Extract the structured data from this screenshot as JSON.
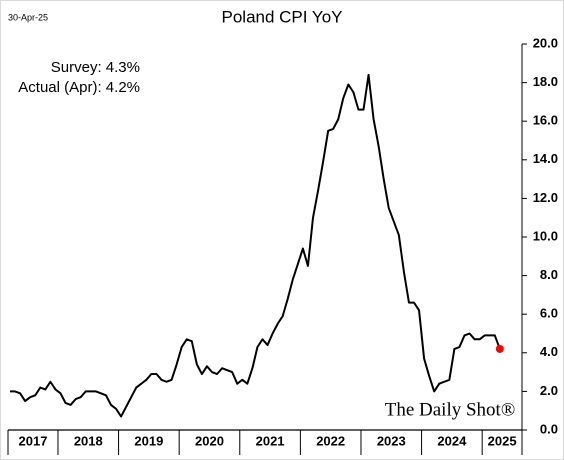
{
  "date": "30-Apr-25",
  "brand": "The Daily Shot®",
  "chart_data": {
    "type": "line",
    "title": "Poland CPI YoY",
    "annotations": [
      "Survey:  4.3%",
      "Actual (Apr):  4.2%"
    ],
    "categories": [
      "2017",
      null,
      null,
      null,
      null,
      null,
      null,
      null,
      null,
      null,
      "2018",
      null,
      null,
      null,
      null,
      null,
      null,
      null,
      null,
      null,
      null,
      null,
      "2019",
      null,
      null,
      null,
      null,
      null,
      null,
      null,
      null,
      null,
      null,
      null,
      "2020",
      null,
      null,
      null,
      null,
      null,
      null,
      null,
      null,
      null,
      null,
      null,
      "2021",
      null,
      null,
      null,
      null,
      null,
      null,
      null,
      null,
      null,
      null,
      null,
      "2022",
      null,
      null,
      null,
      null,
      null,
      null,
      null,
      null,
      null,
      null,
      null,
      "2023",
      null,
      null,
      null,
      null,
      null,
      null,
      null,
      null,
      null,
      null,
      null,
      "2024",
      null,
      null,
      null,
      null,
      null,
      null,
      null,
      null,
      null,
      null,
      null,
      "2025",
      null,
      null,
      null
    ],
    "series": [
      {
        "color": "#000000",
        "last_point_color": "#ff0000",
        "values": [
          2.0,
          2.0,
          1.9,
          1.5,
          1.7,
          1.8,
          2.2,
          2.1,
          2.5,
          2.1,
          1.9,
          1.4,
          1.3,
          1.6,
          1.7,
          2.0,
          2.0,
          2.0,
          1.9,
          1.8,
          1.3,
          1.1,
          0.7,
          1.2,
          1.7,
          2.2,
          2.4,
          2.6,
          2.9,
          2.9,
          2.6,
          2.5,
          2.6,
          3.4,
          4.3,
          4.7,
          4.6,
          3.4,
          2.9,
          3.3,
          3.0,
          2.9,
          3.2,
          3.1,
          3.0,
          2.4,
          2.6,
          2.4,
          3.2,
          4.3,
          4.7,
          4.4,
          5.0,
          5.5,
          5.9,
          6.8,
          7.8,
          8.6,
          9.4,
          8.5,
          11.0,
          12.4,
          13.9,
          15.5,
          15.6,
          16.1,
          17.2,
          17.9,
          17.5,
          16.6,
          16.6,
          18.4,
          16.1,
          14.7,
          13.0,
          11.5,
          10.8,
          10.1,
          8.2,
          6.6,
          6.6,
          6.2,
          3.7,
          2.8,
          2.0,
          2.4,
          2.5,
          2.6,
          4.2,
          4.3,
          4.9,
          5.0,
          4.7,
          4.7,
          4.9,
          4.9,
          4.9,
          4.2
        ]
      }
    ],
    "ylim": [
      0,
      20
    ],
    "yticks": [
      {
        "value": 0,
        "label": "0.0"
      },
      {
        "value": 2,
        "label": "2.0"
      },
      {
        "value": 4,
        "label": "4.0"
      },
      {
        "value": 6,
        "label": "6.0"
      },
      {
        "value": 8,
        "label": "8.0"
      },
      {
        "value": 10,
        "label": "10.0"
      },
      {
        "value": 12,
        "label": "12.0"
      },
      {
        "value": 14,
        "label": "14.0"
      },
      {
        "value": 16,
        "label": "16.0"
      },
      {
        "value": 18,
        "label": "18.0"
      },
      {
        "value": 20,
        "label": "20.0"
      }
    ],
    "grid": false
  }
}
